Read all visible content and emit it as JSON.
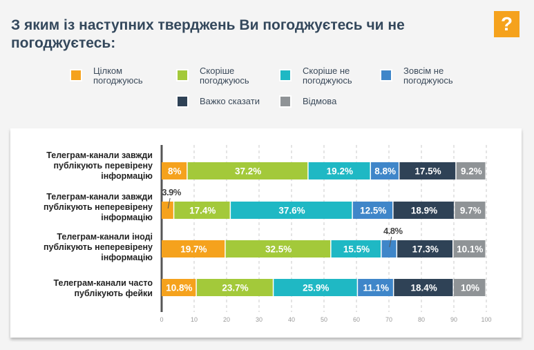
{
  "title": "З яким із наступних тверджень Ви погоджуєтесь чи не погоджуєтесь:",
  "help_icon": "?",
  "chart_data": {
    "type": "bar",
    "stacked": true,
    "orientation": "horizontal",
    "categories": [
      "Телеграм-канали завжди публікують перевірену інформацію",
      "Телеграм-канали завжди публікують неперевірену інформацію",
      "Телеграм-канали іноді публікують неперевірену інформацію",
      "Телеграм-канали часто публікують фейки"
    ],
    "series": [
      {
        "name": "Цілком погоджуюсь",
        "color": "#f5a21d",
        "values": [
          8,
          3.9,
          19.7,
          10.8
        ]
      },
      {
        "name": "Скоріше погоджуюсь",
        "color": "#a3c93a",
        "values": [
          37.2,
          17.4,
          32.5,
          23.7
        ]
      },
      {
        "name": "Скоріше не погоджуюсь",
        "color": "#1fb8c4",
        "values": [
          19.2,
          37.6,
          15.5,
          25.9
        ]
      },
      {
        "name": "Зовсім не погоджуюсь",
        "color": "#3f86c9",
        "values": [
          8.8,
          12.5,
          4.8,
          11.1
        ]
      },
      {
        "name": "Важко сказати",
        "color": "#2f4256",
        "values": [
          17.5,
          18.9,
          17.3,
          18.4
        ]
      },
      {
        "name": "Відмова",
        "color": "#8f9396",
        "values": [
          9.2,
          9.7,
          10.1,
          10
        ]
      }
    ],
    "labels": [
      [
        "8%",
        "37.2%",
        "19.2%",
        "8.8%",
        "17.5%",
        "9.2%"
      ],
      [
        "3.9%",
        "17.4%",
        "37.6%",
        "12.5%",
        "18.9%",
        "9.7%"
      ],
      [
        "19.7%",
        "32.5%",
        "15.5%",
        "4.8%",
        "17.3%",
        "10.1%"
      ],
      [
        "10.8%",
        "23.7%",
        "25.9%",
        "11.1%",
        "18.4%",
        "10%"
      ]
    ],
    "xticks": [
      "0",
      "10",
      "20",
      "30",
      "40",
      "50",
      "60",
      "70",
      "80",
      "90",
      "100"
    ],
    "xlim": [
      0,
      100
    ],
    "grid": true,
    "legend": "top"
  }
}
